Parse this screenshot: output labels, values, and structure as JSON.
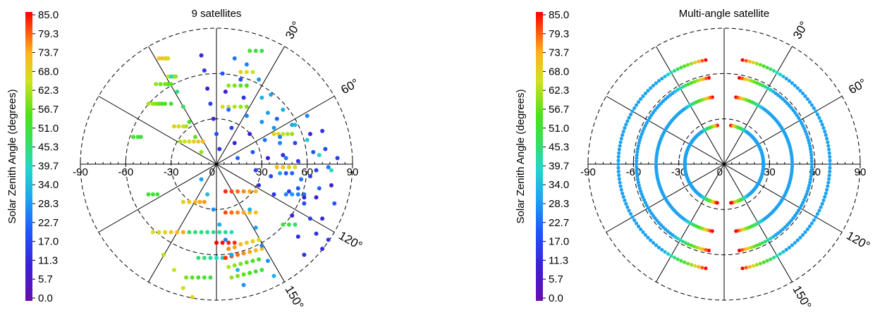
{
  "colorbar_label": "Solar Zenith Angle (degrees)",
  "colorbar_ticks": [
    "85.0",
    "79.3",
    "73.7",
    "68.0",
    "62.3",
    "56.7",
    "51.0",
    "45.3",
    "39.7",
    "34.0",
    "28.3",
    "22.7",
    "17.0",
    "11.3",
    "5.7",
    "0.0"
  ],
  "colorbar_range": [
    0,
    85
  ],
  "colors": {
    "axis": "#000000",
    "background": "#ffffff"
  },
  "chart_data": [
    {
      "type": "scatter",
      "projection": "polar",
      "title": "9 satellites",
      "colorbar": "Solar Zenith Angle (degrees)",
      "radial_tick_labels": [
        "-90",
        "-60",
        "-30",
        "0",
        "30",
        "60",
        "90"
      ],
      "rlim": [
        0,
        90
      ],
      "dashed_rings": [
        30,
        60,
        90
      ],
      "spokes_deg": [
        0,
        30,
        60,
        90,
        120,
        150
      ],
      "angle_labels": [
        "30°",
        "60°",
        "120°",
        "150°"
      ],
      "grid": true,
      "tracks": [
        {
          "x": [
            -38,
            -36,
            -34,
            -33,
            -32
          ],
          "y": [
            70,
            70,
            70,
            70,
            70
          ],
          "c": [
            70,
            70,
            68,
            68,
            66
          ]
        },
        {
          "x": [
            -32,
            -30,
            -29,
            -28,
            -27
          ],
          "y": [
            58,
            58,
            58,
            58,
            58
          ],
          "c": [
            64,
            62,
            62,
            60,
            60
          ]
        },
        {
          "x": [
            -45,
            -42,
            -40,
            -38,
            -36,
            -34,
            -30
          ],
          "y": [
            40,
            40,
            40,
            40,
            40,
            40,
            40
          ],
          "c": [
            62,
            60,
            58,
            56,
            55,
            54,
            52
          ]
        },
        {
          "x": [
            -40,
            -37,
            -34,
            -32,
            -30
          ],
          "y": [
            53,
            53,
            53,
            53,
            53
          ],
          "c": [
            60,
            58,
            58,
            56,
            56
          ]
        },
        {
          "x": [
            -28,
            -25,
            -22,
            -20
          ],
          "y": [
            25,
            25,
            25,
            25
          ],
          "c": [
            68,
            66,
            64,
            62
          ]
        },
        {
          "x": [
            -24,
            -21,
            -18,
            -15,
            -12,
            -9
          ],
          "y": [
            15,
            15,
            15,
            15,
            15,
            15
          ],
          "c": [
            62,
            64,
            66,
            68,
            70,
            72
          ]
        },
        {
          "x": [
            -55,
            -52,
            -50
          ],
          "y": [
            18,
            18,
            18
          ],
          "c": [
            52,
            50,
            50
          ]
        },
        {
          "x": [
            -45,
            -42,
            -39
          ],
          "y": [
            -20,
            -20,
            -20
          ],
          "c": [
            50,
            52,
            50
          ]
        },
        {
          "x": [
            -22,
            -18,
            -14,
            -11,
            -8
          ],
          "y": [
            -25,
            -25,
            -25,
            -25,
            -25
          ],
          "c": [
            68,
            70,
            72,
            74,
            75
          ]
        },
        {
          "x": [
            -42,
            -38,
            -34,
            -30,
            -26,
            -22
          ],
          "y": [
            -45,
            -45,
            -45,
            -45,
            -45,
            -45
          ],
          "c": [
            65,
            66,
            68,
            70,
            72,
            74
          ]
        },
        {
          "x": [
            -18,
            -14,
            -10,
            -6,
            -2,
            2,
            6,
            10
          ],
          "y": [
            -45,
            -45,
            -45,
            -45,
            -45,
            -45,
            -45,
            -45
          ],
          "c": [
            46,
            45,
            44,
            44,
            43,
            42,
            42,
            40
          ]
        },
        {
          "x": [
            -20,
            -16,
            -12,
            -8,
            -4
          ],
          "y": [
            -75,
            -75,
            -75,
            -75,
            -75
          ],
          "c": [
            58,
            56,
            54,
            52,
            50
          ]
        },
        {
          "x": [
            -12,
            -8,
            -4,
            0,
            4
          ],
          "y": [
            -62,
            -62,
            -62,
            -62,
            -62
          ],
          "c": [
            45,
            44,
            42,
            40,
            38
          ]
        },
        {
          "x": [
            6,
            10,
            14,
            18,
            22,
            26
          ],
          "y": [
            -18,
            -18,
            -18,
            -18,
            -18,
            -18
          ],
          "c": [
            82,
            80,
            78,
            76,
            74,
            72
          ]
        },
        {
          "x": [
            6,
            10,
            14,
            18,
            22,
            26
          ],
          "y": [
            -32,
            -32,
            -32,
            -32,
            -32,
            -32
          ],
          "c": [
            80,
            78,
            76,
            74,
            72,
            70
          ]
        },
        {
          "x": [
            8,
            12,
            16,
            20,
            24,
            28
          ],
          "y": [
            -56,
            -55,
            -53,
            -52,
            -51,
            -50
          ],
          "c": [
            76,
            74,
            72,
            70,
            68,
            66
          ]
        },
        {
          "x": [
            6,
            10,
            14,
            18,
            22,
            26,
            30
          ],
          "y": [
            -62,
            -61,
            -60,
            -59,
            -58,
            -57,
            -56
          ],
          "c": [
            82,
            80,
            78,
            76,
            74,
            72,
            70
          ]
        },
        {
          "x": [
            8,
            12,
            16,
            20,
            24,
            28
          ],
          "y": [
            -68,
            -67,
            -66,
            -65,
            -64,
            -63
          ],
          "c": [
            62,
            60,
            58,
            56,
            54,
            52
          ]
        },
        {
          "x": [
            10,
            14,
            18,
            22,
            26,
            30
          ],
          "y": [
            -75,
            -74,
            -73,
            -72,
            -71,
            -70
          ],
          "c": [
            60,
            58,
            56,
            54,
            52,
            50
          ]
        },
        {
          "x": [
            0,
            4,
            8,
            12
          ],
          "y": [
            -52,
            -52,
            -52,
            -52
          ],
          "c": [
            85,
            84,
            83,
            82
          ]
        },
        {
          "x": [
            4,
            8,
            12,
            16,
            20
          ],
          "y": [
            38,
            38,
            38,
            38,
            38
          ],
          "c": [
            66,
            64,
            62,
            60,
            58
          ]
        },
        {
          "x": [
            8,
            12,
            16,
            20
          ],
          "y": [
            52,
            52,
            52,
            52
          ],
          "c": [
            60,
            58,
            56,
            54
          ]
        },
        {
          "x": [
            16,
            20,
            24
          ],
          "y": [
            61,
            61,
            61
          ],
          "c": [
            68,
            66,
            64
          ]
        },
        {
          "x": [
            22,
            26,
            30
          ],
          "y": [
            75,
            75,
            75
          ],
          "c": [
            52,
            50,
            48
          ]
        },
        {
          "x": [
            38,
            41,
            44,
            47,
            50
          ],
          "y": [
            20,
            20,
            20,
            20,
            20
          ],
          "c": [
            68,
            66,
            64,
            62,
            60
          ]
        },
        {
          "x": [
            40,
            44,
            48,
            52
          ],
          "y": [
            -2,
            -2,
            -2,
            -2
          ],
          "c": [
            72,
            70,
            68,
            66
          ]
        },
        {
          "x": [
            44,
            48,
            52
          ],
          "y": [
            -40,
            -40,
            -40
          ],
          "c": [
            50,
            48,
            46
          ]
        },
        {
          "x": [
            50,
            54,
            58
          ],
          "y": [
            -20,
            -20,
            -20
          ],
          "c": [
            28,
            26,
            24
          ]
        }
      ],
      "points": {
        "x": [
          -10,
          -8,
          -6,
          -4,
          -2,
          0,
          2,
          4,
          6,
          8,
          10,
          12,
          14,
          16,
          18,
          20,
          22,
          24,
          26,
          28,
          30,
          32,
          34,
          36,
          38,
          40,
          42,
          44,
          46,
          48,
          50,
          52,
          54,
          56,
          58,
          60,
          62,
          64,
          66,
          68,
          70,
          72,
          74,
          76,
          78,
          80,
          -10,
          -6,
          -2,
          2,
          6,
          10,
          14,
          18,
          22,
          26,
          30,
          34,
          38,
          42,
          46,
          50,
          54,
          58,
          62,
          66,
          70,
          74,
          30,
          34,
          38,
          42,
          46,
          50,
          54,
          58,
          62,
          66,
          70,
          -30,
          -26,
          -22,
          -18,
          -14,
          -10,
          -35,
          -28,
          -22,
          -16,
          12,
          20,
          28,
          36,
          44,
          52,
          60,
          68,
          76
        ],
        "y": [
          72,
          62,
          50,
          40,
          30,
          20,
          10,
          60,
          48,
          36,
          24,
          14,
          4,
          56,
          44,
          32,
          20,
          8,
          -4,
          -14,
          28,
          16,
          4,
          -8,
          -20,
          30,
          18,
          6,
          -6,
          -18,
          26,
          14,
          2,
          -10,
          -22,
          32,
          20,
          8,
          -4,
          -16,
          22,
          10,
          -2,
          -14,
          -26,
          4,
          -10,
          -20,
          -30,
          -40,
          -50,
          -60,
          -70,
          -80,
          -30,
          -42,
          -54,
          -64,
          -74,
          -6,
          -20,
          -34,
          -48,
          -60,
          -8,
          -22,
          -36,
          -50,
          44,
          34,
          24,
          14,
          4,
          -6,
          -16,
          -26,
          -36,
          -46,
          -56,
          58,
          48,
          38,
          28,
          18,
          8,
          -60,
          -70,
          -82,
          -88,
          70,
          66,
          56,
          46,
          36,
          26,
          16,
          6,
          -4
        ],
        "c": [
          12,
          14,
          10,
          16,
          12,
          18,
          14,
          20,
          10,
          24,
          16,
          12,
          22,
          18,
          14,
          26,
          10,
          20,
          16,
          12,
          28,
          24,
          10,
          18,
          14,
          22,
          26,
          12,
          20,
          16,
          30,
          18,
          14,
          24,
          10,
          26,
          12,
          20,
          16,
          22,
          14,
          18,
          24,
          10,
          20,
          16,
          30,
          34,
          28,
          32,
          26,
          30,
          34,
          28,
          32,
          30,
          26,
          28,
          32,
          30,
          26,
          10,
          12,
          14,
          16,
          10,
          12,
          14,
          32,
          30,
          28,
          26,
          24,
          22,
          20,
          18,
          16,
          14,
          12,
          40,
          44,
          48,
          52,
          56,
          60,
          62,
          64,
          66,
          68,
          24,
          26,
          28,
          30,
          32,
          34,
          36,
          38,
          40
        ]
      }
    },
    {
      "type": "scatter",
      "projection": "polar",
      "title": "Multi-angle satellite",
      "colorbar": "Solar Zenith Angle (degrees)",
      "radial_tick_labels": [
        "-90",
        "-60",
        "-30",
        "0",
        "30",
        "60",
        "90"
      ],
      "rlim": [
        0,
        90
      ],
      "dashed_rings": [
        30,
        60,
        90
      ],
      "spokes_deg": [
        0,
        30,
        60,
        90,
        120,
        150
      ],
      "angle_labels": [
        "30°",
        "60°",
        "120°",
        "150°"
      ],
      "grid": true,
      "rings": [
        {
          "r": 26,
          "angles_from": 10,
          "angles_to": 170,
          "c_ends": 85,
          "c_mid": 30
        },
        {
          "r": 45,
          "angles_from": 10,
          "angles_to": 170,
          "c_ends": 85,
          "c_mid": 30
        },
        {
          "r": 58,
          "angles_from": 10,
          "angles_to": 170,
          "c_ends": 85,
          "c_mid": 30
        },
        {
          "r": 70,
          "angles_from": 10,
          "angles_to": 170,
          "c_ends": 85,
          "c_mid": 30
        }
      ]
    }
  ]
}
